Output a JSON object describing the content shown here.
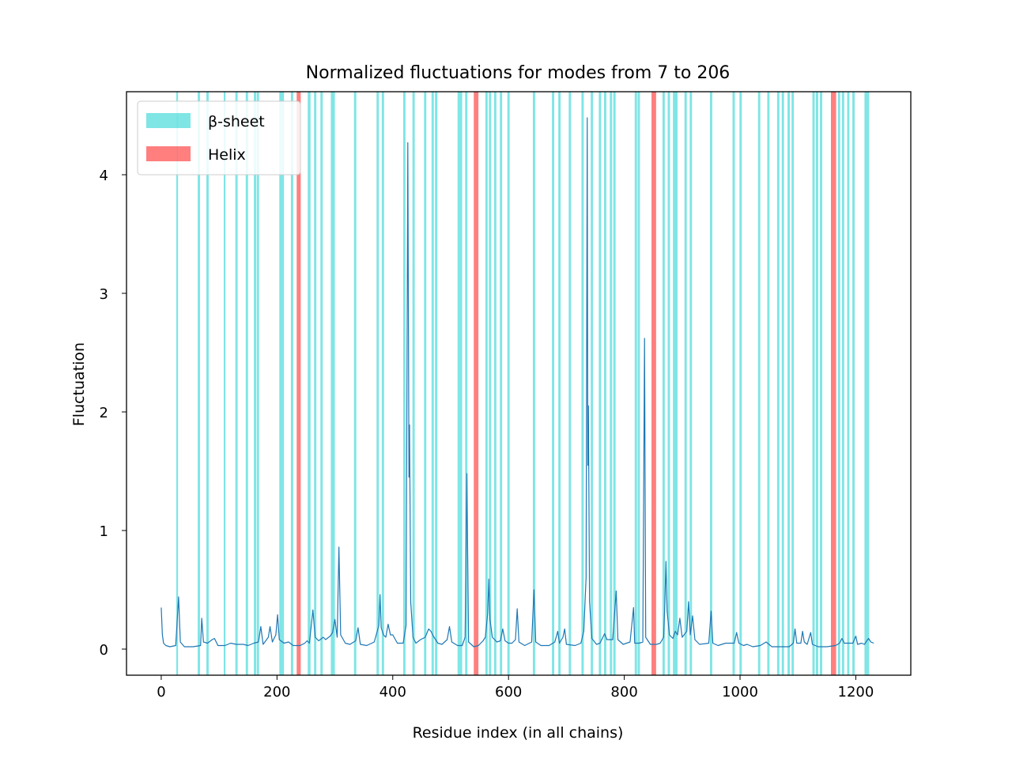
{
  "chart_data": {
    "type": "line",
    "title": "Normalized fluctuations for modes from 7 to 206",
    "xlabel": "Residue index (in all chains)",
    "ylabel": "Fluctuation",
    "xlim": [
      -60,
      1295
    ],
    "ylim": [
      -0.22,
      4.7
    ],
    "xticks": [
      0,
      200,
      400,
      600,
      800,
      1000,
      1200
    ],
    "yticks": [
      0,
      1,
      2,
      3,
      4
    ],
    "grid": false,
    "legend_position": "upper-left",
    "line_color": "#1f77b4",
    "legend": [
      {
        "label": "β-sheet",
        "color": "#00cccc",
        "opacity": 0.5
      },
      {
        "label": "Helix",
        "color": "#ff0000",
        "opacity": 0.5
      }
    ],
    "helix_bands": [
      [
        234,
        241
      ],
      [
        540,
        548
      ],
      [
        847,
        855
      ],
      [
        1157,
        1166
      ]
    ],
    "sheet_bands": [
      [
        26,
        29
      ],
      [
        63,
        67
      ],
      [
        78,
        82
      ],
      [
        108,
        111
      ],
      [
        128,
        132
      ],
      [
        146,
        150
      ],
      [
        160,
        164
      ],
      [
        165,
        169
      ],
      [
        204,
        208
      ],
      [
        208,
        212
      ],
      [
        224,
        228
      ],
      [
        253,
        258
      ],
      [
        264,
        268
      ],
      [
        275,
        279
      ],
      [
        293,
        297
      ],
      [
        297,
        300
      ],
      [
        333,
        337
      ],
      [
        372,
        376
      ],
      [
        381,
        385
      ],
      [
        418,
        422
      ],
      [
        434,
        438
      ],
      [
        454,
        458
      ],
      [
        467,
        471
      ],
      [
        473,
        477
      ],
      [
        512,
        516
      ],
      [
        516,
        520
      ],
      [
        525,
        529
      ],
      [
        560,
        564
      ],
      [
        566,
        570
      ],
      [
        575,
        579
      ],
      [
        585,
        589
      ],
      [
        598,
        602
      ],
      [
        642,
        646
      ],
      [
        675,
        679
      ],
      [
        686,
        690
      ],
      [
        704,
        708
      ],
      [
        726,
        730
      ],
      [
        742,
        746
      ],
      [
        756,
        760
      ],
      [
        765,
        769
      ],
      [
        775,
        779
      ],
      [
        781,
        785
      ],
      [
        818,
        822
      ],
      [
        823,
        827
      ],
      [
        866,
        870
      ],
      [
        875,
        879
      ],
      [
        884,
        888
      ],
      [
        888,
        892
      ],
      [
        904,
        908
      ],
      [
        913,
        917
      ],
      [
        948,
        952
      ],
      [
        987,
        991
      ],
      [
        999,
        1003
      ],
      [
        1031,
        1035
      ],
      [
        1047,
        1051
      ],
      [
        1064,
        1068
      ],
      [
        1072,
        1076
      ],
      [
        1082,
        1086
      ],
      [
        1089,
        1093
      ],
      [
        1125,
        1129
      ],
      [
        1131,
        1135
      ],
      [
        1138,
        1142
      ],
      [
        1169,
        1173
      ],
      [
        1176,
        1180
      ],
      [
        1185,
        1189
      ],
      [
        1194,
        1198
      ],
      [
        1215,
        1219
      ],
      [
        1219,
        1223
      ]
    ],
    "series": [
      {
        "values": [
          [
            0,
            0.35
          ],
          [
            2,
            0.12
          ],
          [
            4,
            0.05
          ],
          [
            8,
            0.03
          ],
          [
            15,
            0.02
          ],
          [
            25,
            0.03
          ],
          [
            30,
            0.44
          ],
          [
            33,
            0.06
          ],
          [
            40,
            0.02
          ],
          [
            55,
            0.02
          ],
          [
            68,
            0.03
          ],
          [
            70,
            0.26
          ],
          [
            73,
            0.06
          ],
          [
            80,
            0.05
          ],
          [
            88,
            0.08
          ],
          [
            92,
            0.09
          ],
          [
            98,
            0.03
          ],
          [
            110,
            0.03
          ],
          [
            120,
            0.05
          ],
          [
            130,
            0.04
          ],
          [
            142,
            0.04
          ],
          [
            150,
            0.03
          ],
          [
            160,
            0.05
          ],
          [
            168,
            0.06
          ],
          [
            172,
            0.19
          ],
          [
            176,
            0.04
          ],
          [
            185,
            0.1
          ],
          [
            188,
            0.19
          ],
          [
            192,
            0.06
          ],
          [
            198,
            0.12
          ],
          [
            201,
            0.29
          ],
          [
            204,
            0.08
          ],
          [
            212,
            0.05
          ],
          [
            220,
            0.06
          ],
          [
            228,
            0.03
          ],
          [
            240,
            0.03
          ],
          [
            248,
            0.05
          ],
          [
            252,
            0.07
          ],
          [
            256,
            0.05
          ],
          [
            262,
            0.33
          ],
          [
            266,
            0.1
          ],
          [
            272,
            0.07
          ],
          [
            280,
            0.1
          ],
          [
            284,
            0.08
          ],
          [
            292,
            0.11
          ],
          [
            296,
            0.14
          ],
          [
            300,
            0.25
          ],
          [
            304,
            0.1
          ],
          [
            307,
            0.86
          ],
          [
            310,
            0.12
          ],
          [
            318,
            0.05
          ],
          [
            326,
            0.04
          ],
          [
            336,
            0.07
          ],
          [
            340,
            0.18
          ],
          [
            344,
            0.04
          ],
          [
            355,
            0.03
          ],
          [
            368,
            0.06
          ],
          [
            376,
            0.2
          ],
          [
            378,
            0.46
          ],
          [
            380,
            0.18
          ],
          [
            384,
            0.12
          ],
          [
            388,
            0.1
          ],
          [
            392,
            0.21
          ],
          [
            396,
            0.12
          ],
          [
            400,
            0.12
          ],
          [
            408,
            0.05
          ],
          [
            418,
            0.05
          ],
          [
            423,
            0.2
          ],
          [
            426,
            4.27
          ],
          [
            428,
            1.45
          ],
          [
            429,
            1.89
          ],
          [
            431,
            0.4
          ],
          [
            435,
            0.1
          ],
          [
            440,
            0.05
          ],
          [
            448,
            0.08
          ],
          [
            456,
            0.1
          ],
          [
            462,
            0.17
          ],
          [
            466,
            0.15
          ],
          [
            470,
            0.11
          ],
          [
            478,
            0.05
          ],
          [
            485,
            0.04
          ],
          [
            494,
            0.08
          ],
          [
            498,
            0.19
          ],
          [
            502,
            0.06
          ],
          [
            512,
            0.03
          ],
          [
            520,
            0.03
          ],
          [
            525,
            0.1
          ],
          [
            528,
            1.48
          ],
          [
            531,
            0.06
          ],
          [
            540,
            0.02
          ],
          [
            548,
            0.03
          ],
          [
            556,
            0.07
          ],
          [
            560,
            0.1
          ],
          [
            564,
            0.3
          ],
          [
            566,
            0.59
          ],
          [
            568,
            0.25
          ],
          [
            572,
            0.1
          ],
          [
            580,
            0.06
          ],
          [
            586,
            0.07
          ],
          [
            590,
            0.17
          ],
          [
            594,
            0.07
          ],
          [
            600,
            0.05
          ],
          [
            606,
            0.05
          ],
          [
            612,
            0.08
          ],
          [
            615,
            0.34
          ],
          [
            618,
            0.06
          ],
          [
            628,
            0.03
          ],
          [
            640,
            0.06
          ],
          [
            644,
            0.5
          ],
          [
            647,
            0.06
          ],
          [
            656,
            0.03
          ],
          [
            670,
            0.03
          ],
          [
            680,
            0.06
          ],
          [
            685,
            0.15
          ],
          [
            688,
            0.05
          ],
          [
            694,
            0.1
          ],
          [
            697,
            0.17
          ],
          [
            700,
            0.04
          ],
          [
            715,
            0.03
          ],
          [
            725,
            0.05
          ],
          [
            730,
            0.15
          ],
          [
            734,
            0.6
          ],
          [
            736,
            4.48
          ],
          [
            737,
            1.55
          ],
          [
            738,
            2.05
          ],
          [
            740,
            0.4
          ],
          [
            744,
            0.09
          ],
          [
            752,
            0.04
          ],
          [
            758,
            0.05
          ],
          [
            766,
            0.13
          ],
          [
            770,
            0.08
          ],
          [
            775,
            0.08
          ],
          [
            780,
            0.08
          ],
          [
            786,
            0.49
          ],
          [
            789,
            0.08
          ],
          [
            798,
            0.04
          ],
          [
            810,
            0.06
          ],
          [
            816,
            0.35
          ],
          [
            818,
            0.05
          ],
          [
            826,
            0.05
          ],
          [
            832,
            0.06
          ],
          [
            835,
            2.62
          ],
          [
            837,
            0.1
          ],
          [
            845,
            0.04
          ],
          [
            856,
            0.04
          ],
          [
            862,
            0.05
          ],
          [
            868,
            0.1
          ],
          [
            870,
            0.37
          ],
          [
            872,
            0.74
          ],
          [
            874,
            0.32
          ],
          [
            878,
            0.12
          ],
          [
            884,
            0.09
          ],
          [
            888,
            0.15
          ],
          [
            892,
            0.12
          ],
          [
            896,
            0.26
          ],
          [
            900,
            0.1
          ],
          [
            908,
            0.15
          ],
          [
            911,
            0.4
          ],
          [
            914,
            0.12
          ],
          [
            918,
            0.28
          ],
          [
            922,
            0.08
          ],
          [
            930,
            0.04
          ],
          [
            946,
            0.05
          ],
          [
            950,
            0.32
          ],
          [
            953,
            0.05
          ],
          [
            962,
            0.03
          ],
          [
            975,
            0.05
          ],
          [
            990,
            0.05
          ],
          [
            994,
            0.14
          ],
          [
            998,
            0.05
          ],
          [
            1006,
            0.03
          ],
          [
            1012,
            0.04
          ],
          [
            1022,
            0.02
          ],
          [
            1035,
            0.03
          ],
          [
            1045,
            0.06
          ],
          [
            1055,
            0.02
          ],
          [
            1070,
            0.02
          ],
          [
            1085,
            0.02
          ],
          [
            1092,
            0.05
          ],
          [
            1095,
            0.17
          ],
          [
            1098,
            0.05
          ],
          [
            1105,
            0.05
          ],
          [
            1108,
            0.15
          ],
          [
            1111,
            0.06
          ],
          [
            1116,
            0.04
          ],
          [
            1122,
            0.14
          ],
          [
            1125,
            0.04
          ],
          [
            1135,
            0.02
          ],
          [
            1150,
            0.02
          ],
          [
            1165,
            0.03
          ],
          [
            1172,
            0.05
          ],
          [
            1176,
            0.09
          ],
          [
            1180,
            0.05
          ],
          [
            1188,
            0.05
          ],
          [
            1195,
            0.05
          ],
          [
            1200,
            0.11
          ],
          [
            1203,
            0.04
          ],
          [
            1210,
            0.05
          ],
          [
            1215,
            0.04
          ],
          [
            1219,
            0.07
          ],
          [
            1222,
            0.09
          ],
          [
            1226,
            0.06
          ],
          [
            1231,
            0.05
          ]
        ]
      }
    ]
  }
}
